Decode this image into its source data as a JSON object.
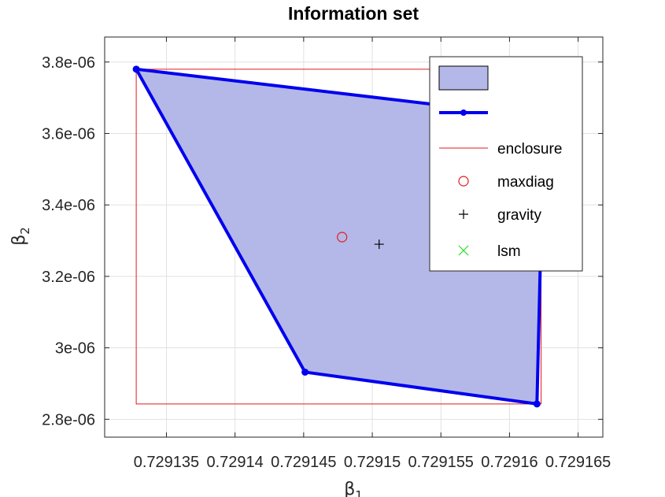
{
  "chart_data": {
    "type": "scatter",
    "title": "Information set",
    "xlabel": "β",
    "xlabel_sub": "1",
    "ylabel": "β",
    "ylabel_sub": "2",
    "xlim": [
      0.7291305,
      0.7291668
    ],
    "ylim": [
      2.75e-06,
      3.87e-06
    ],
    "x_ticks": [
      0.729135,
      0.72914,
      0.729145,
      0.72915,
      0.729155,
      0.72916,
      0.729165
    ],
    "x_tick_labels": [
      "0.729135",
      "0.72914",
      "0.729145",
      "0.72915",
      "0.729155",
      "0.72916",
      "0.729165"
    ],
    "y_ticks": [
      2.8e-06,
      3e-06,
      3.2e-06,
      3.4e-06,
      3.6e-06,
      3.8e-06
    ],
    "y_tick_labels": [
      "2.8e-06",
      "3e-06",
      "3.2e-06",
      "3.4e-06",
      "3.6e-06",
      "3.8e-06"
    ],
    "grid": true,
    "legend_position": "top-right",
    "colors": {
      "fill": "#b4b8e8",
      "boundary": "#0000ee",
      "enclosure": "#e31a1c",
      "maxdiag": "#e31a1c",
      "gravity": "#000000",
      "lsm": "#22dd22"
    },
    "polygon": {
      "x": [
        0.7291328,
        0.7291625,
        0.729162,
        0.7291451,
        0.7291328
      ],
      "y": [
        3.78e-06,
        3.645e-06,
        2.843e-06,
        2.932e-06,
        3.78e-06
      ]
    },
    "vertices": {
      "x": [
        0.7291328,
        0.729162,
        0.7291451
      ],
      "y": [
        3.78e-06,
        2.843e-06,
        2.932e-06
      ]
    },
    "enclosure": {
      "x": [
        0.7291328,
        0.7291623,
        0.7291623,
        0.7291328,
        0.7291328
      ],
      "y": [
        3.78e-06,
        3.78e-06,
        2.843e-06,
        2.843e-06,
        3.78e-06
      ]
    },
    "maxdiag": {
      "x": 0.7291478,
      "y": 3.31e-06
    },
    "gravity": {
      "x": 0.7291505,
      "y": 3.29e-06
    },
    "legend": [
      {
        "label": "",
        "marker": "patch"
      },
      {
        "label": "",
        "marker": "line-dot"
      },
      {
        "label": "enclosure",
        "marker": "line"
      },
      {
        "label": "maxdiag",
        "marker": "circle"
      },
      {
        "label": "gravity",
        "marker": "plus"
      },
      {
        "label": "lsm",
        "marker": "cross"
      }
    ]
  }
}
